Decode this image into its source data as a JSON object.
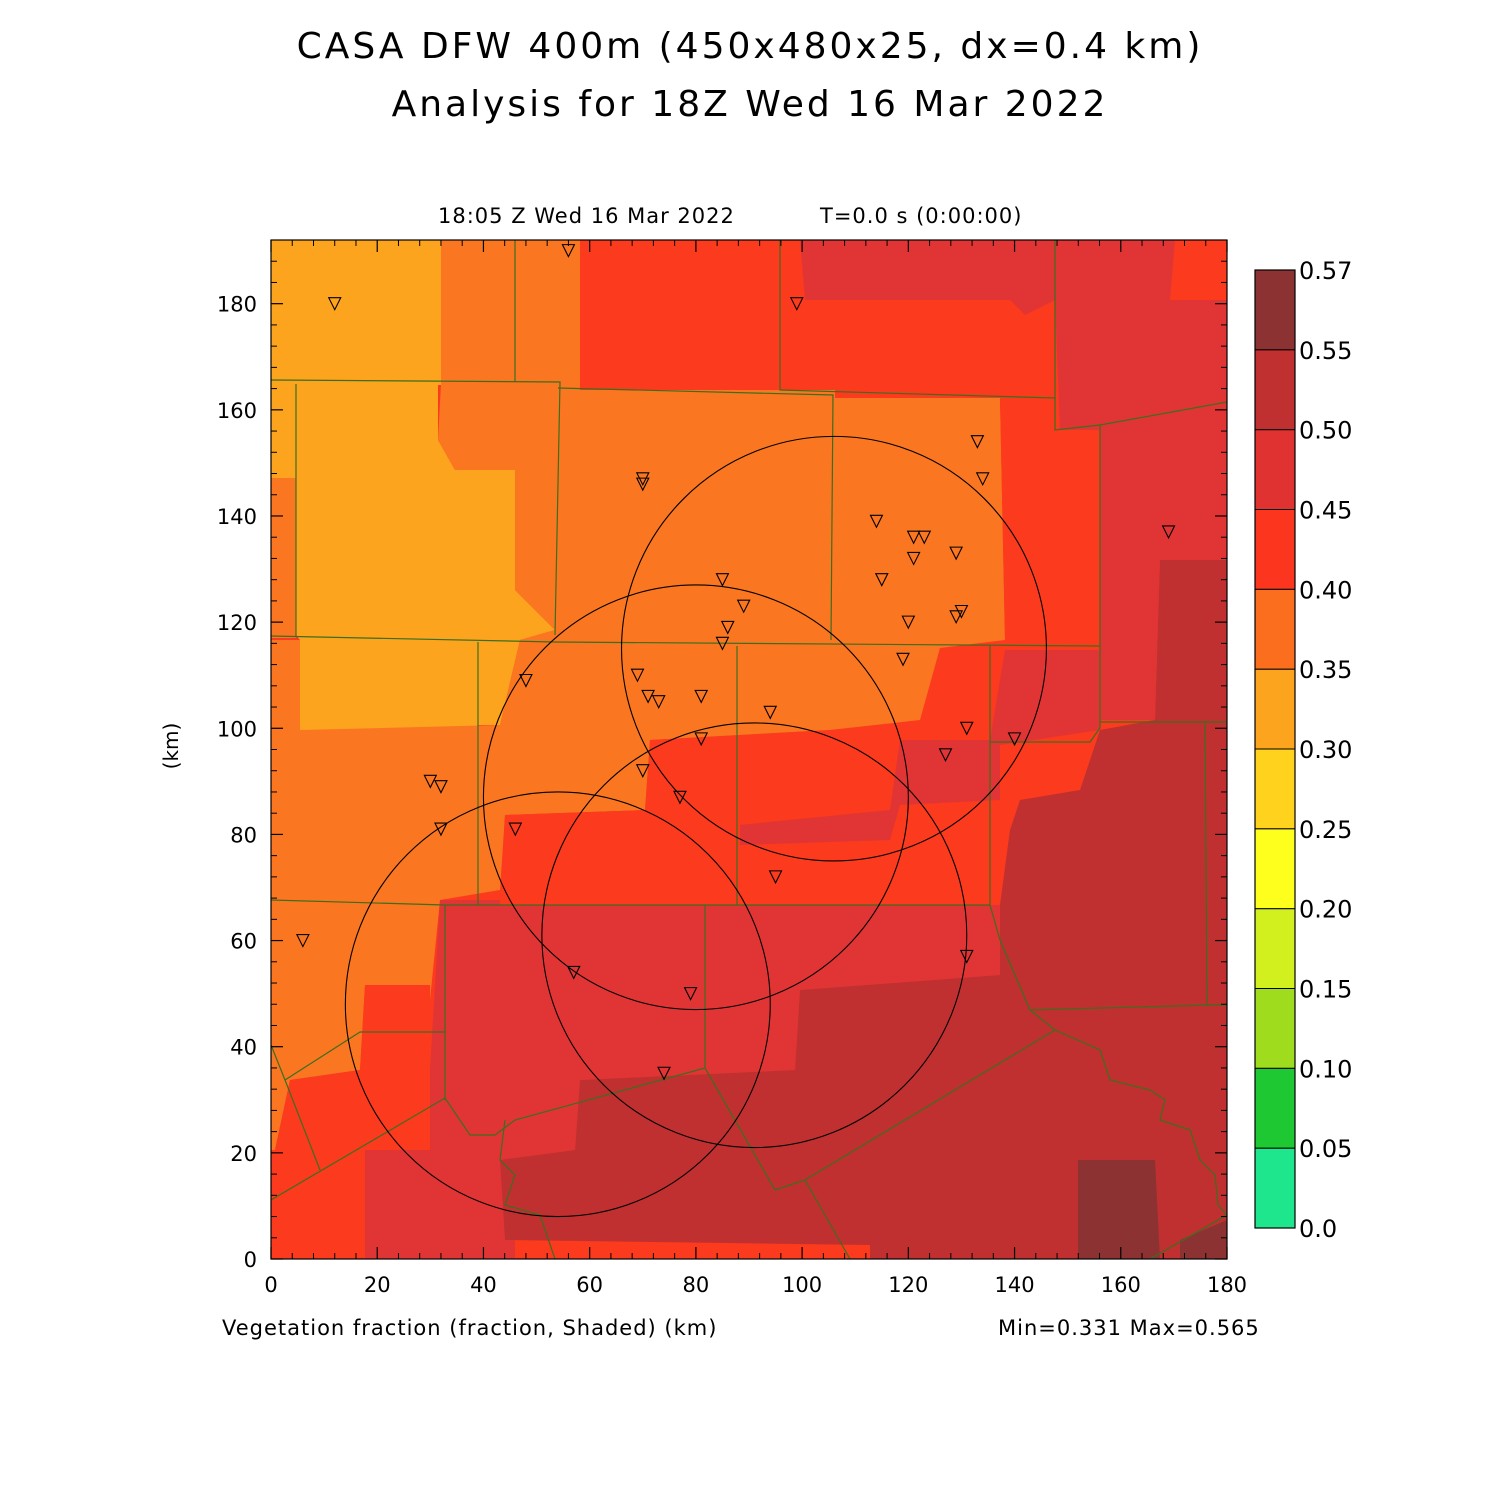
{
  "title_line1": "CASA DFW 400m (450x480x25, dx=0.4 km)",
  "title_line2": "Analysis for 18Z Wed 16 Mar 2022",
  "time_label": "18:05 Z Wed 16 Mar 2022",
  "t_label": "T=0.0 s (0:00:00)",
  "field_label": "Vegetation fraction (fraction, Shaded)  (km)",
  "minmax_label": "Min=0.331 Max=0.565",
  "y_axis_label": "(km)",
  "x_ticks": [
    "0",
    "20",
    "40",
    "60",
    "80",
    "100",
    "120",
    "140",
    "160",
    "180"
  ],
  "y_ticks": [
    "0",
    "20",
    "40",
    "60",
    "80",
    "100",
    "120",
    "140",
    "160",
    "180"
  ],
  "colorbar": {
    "labels": [
      "0.0",
      "0.05",
      "0.10",
      "0.15",
      "0.20",
      "0.25",
      "0.30",
      "0.35",
      "0.40",
      "0.45",
      "0.50",
      "0.55",
      "0.57"
    ],
    "colors": [
      "#1ee68c",
      "#1ec832",
      "#a0dc1e",
      "#d2f01e",
      "#ffff1e",
      "#ffd21e",
      "#fda41f",
      "#fb6e1e",
      "#fb351e",
      "#e13232",
      "#c03030",
      "#8c3232"
    ]
  },
  "colors": {
    "c30": "#fda41f",
    "c35": "#fb7621",
    "c40": "#fb3a1e",
    "c45": "#e13535",
    "c50": "#c03030",
    "c55": "#8c3232",
    "county_line": "#3c6e1e"
  },
  "stations_km": [
    [
      12,
      180
    ],
    [
      56,
      190
    ],
    [
      99,
      180
    ],
    [
      70,
      147
    ],
    [
      70,
      146
    ],
    [
      133,
      154
    ],
    [
      134,
      147
    ],
    [
      169,
      137
    ],
    [
      114,
      139
    ],
    [
      121,
      136
    ],
    [
      123,
      136
    ],
    [
      129,
      133
    ],
    [
      121,
      132
    ],
    [
      115,
      128
    ],
    [
      85,
      128
    ],
    [
      89,
      123
    ],
    [
      130,
      122
    ],
    [
      129,
      121
    ],
    [
      86,
      119
    ],
    [
      120,
      120
    ],
    [
      85,
      116
    ],
    [
      119,
      113
    ],
    [
      69,
      110
    ],
    [
      48,
      109
    ],
    [
      81,
      106
    ],
    [
      71,
      106
    ],
    [
      73,
      105
    ],
    [
      94,
      103
    ],
    [
      131,
      100
    ],
    [
      81,
      98
    ],
    [
      140,
      98
    ],
    [
      127,
      95
    ],
    [
      70,
      92
    ],
    [
      30,
      90
    ],
    [
      32,
      89
    ],
    [
      77,
      87
    ],
    [
      32,
      81
    ],
    [
      46,
      81
    ],
    [
      95,
      72
    ],
    [
      6,
      60
    ],
    [
      131,
      57
    ],
    [
      57,
      54
    ],
    [
      79,
      50
    ],
    [
      74,
      35
    ]
  ],
  "radar_rings_km": [
    {
      "cx": 106,
      "cy": 115,
      "r": 40
    },
    {
      "cx": 80,
      "cy": 87,
      "r": 40
    },
    {
      "cx": 91,
      "cy": 61,
      "r": 40
    },
    {
      "cx": 54,
      "cy": 48,
      "r": 40
    }
  ]
}
